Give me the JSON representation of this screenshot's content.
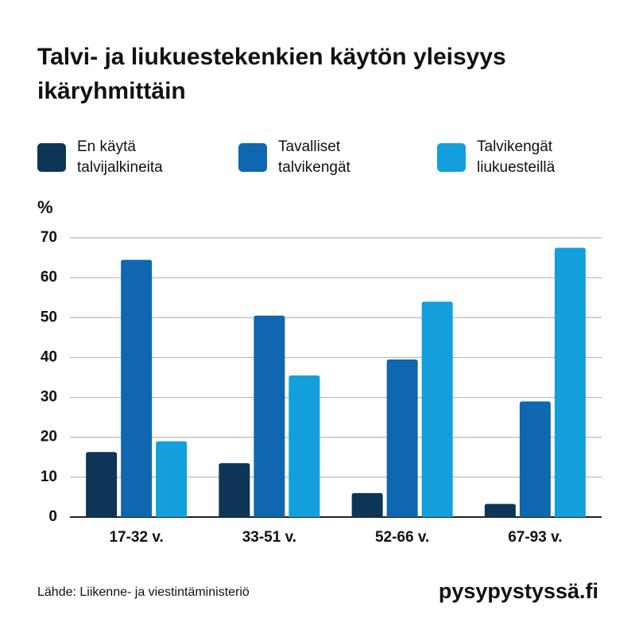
{
  "chart_data": {
    "type": "bar",
    "title": "Talvi- ja liukuestekenkien käytön yleisyys ikäryhmittäin",
    "y_label": "%",
    "categories": [
      "17-32 v.",
      "33-51 v.",
      "52-66 v.",
      "67-93 v."
    ],
    "series": [
      {
        "name": "En käytä talvijalkineita",
        "color": "#0d3558",
        "values": [
          16.3,
          13.5,
          6,
          3.3
        ]
      },
      {
        "name": "Tavalliset talvikengät",
        "color": "#0f67b1",
        "values": [
          64.5,
          50.5,
          39.5,
          29
        ]
      },
      {
        "name": "Talvikengät liukuesteillä",
        "color": "#129fdc",
        "values": [
          19,
          35.5,
          54,
          67.5
        ]
      }
    ],
    "ylim": [
      0,
      70
    ],
    "yticks": [
      0,
      10,
      20,
      30,
      40,
      50,
      60,
      70
    ],
    "grid": true,
    "source": "Lähde: Liikenne- ja viestintäministeriö",
    "brand": "pysypystyssä.fi"
  }
}
